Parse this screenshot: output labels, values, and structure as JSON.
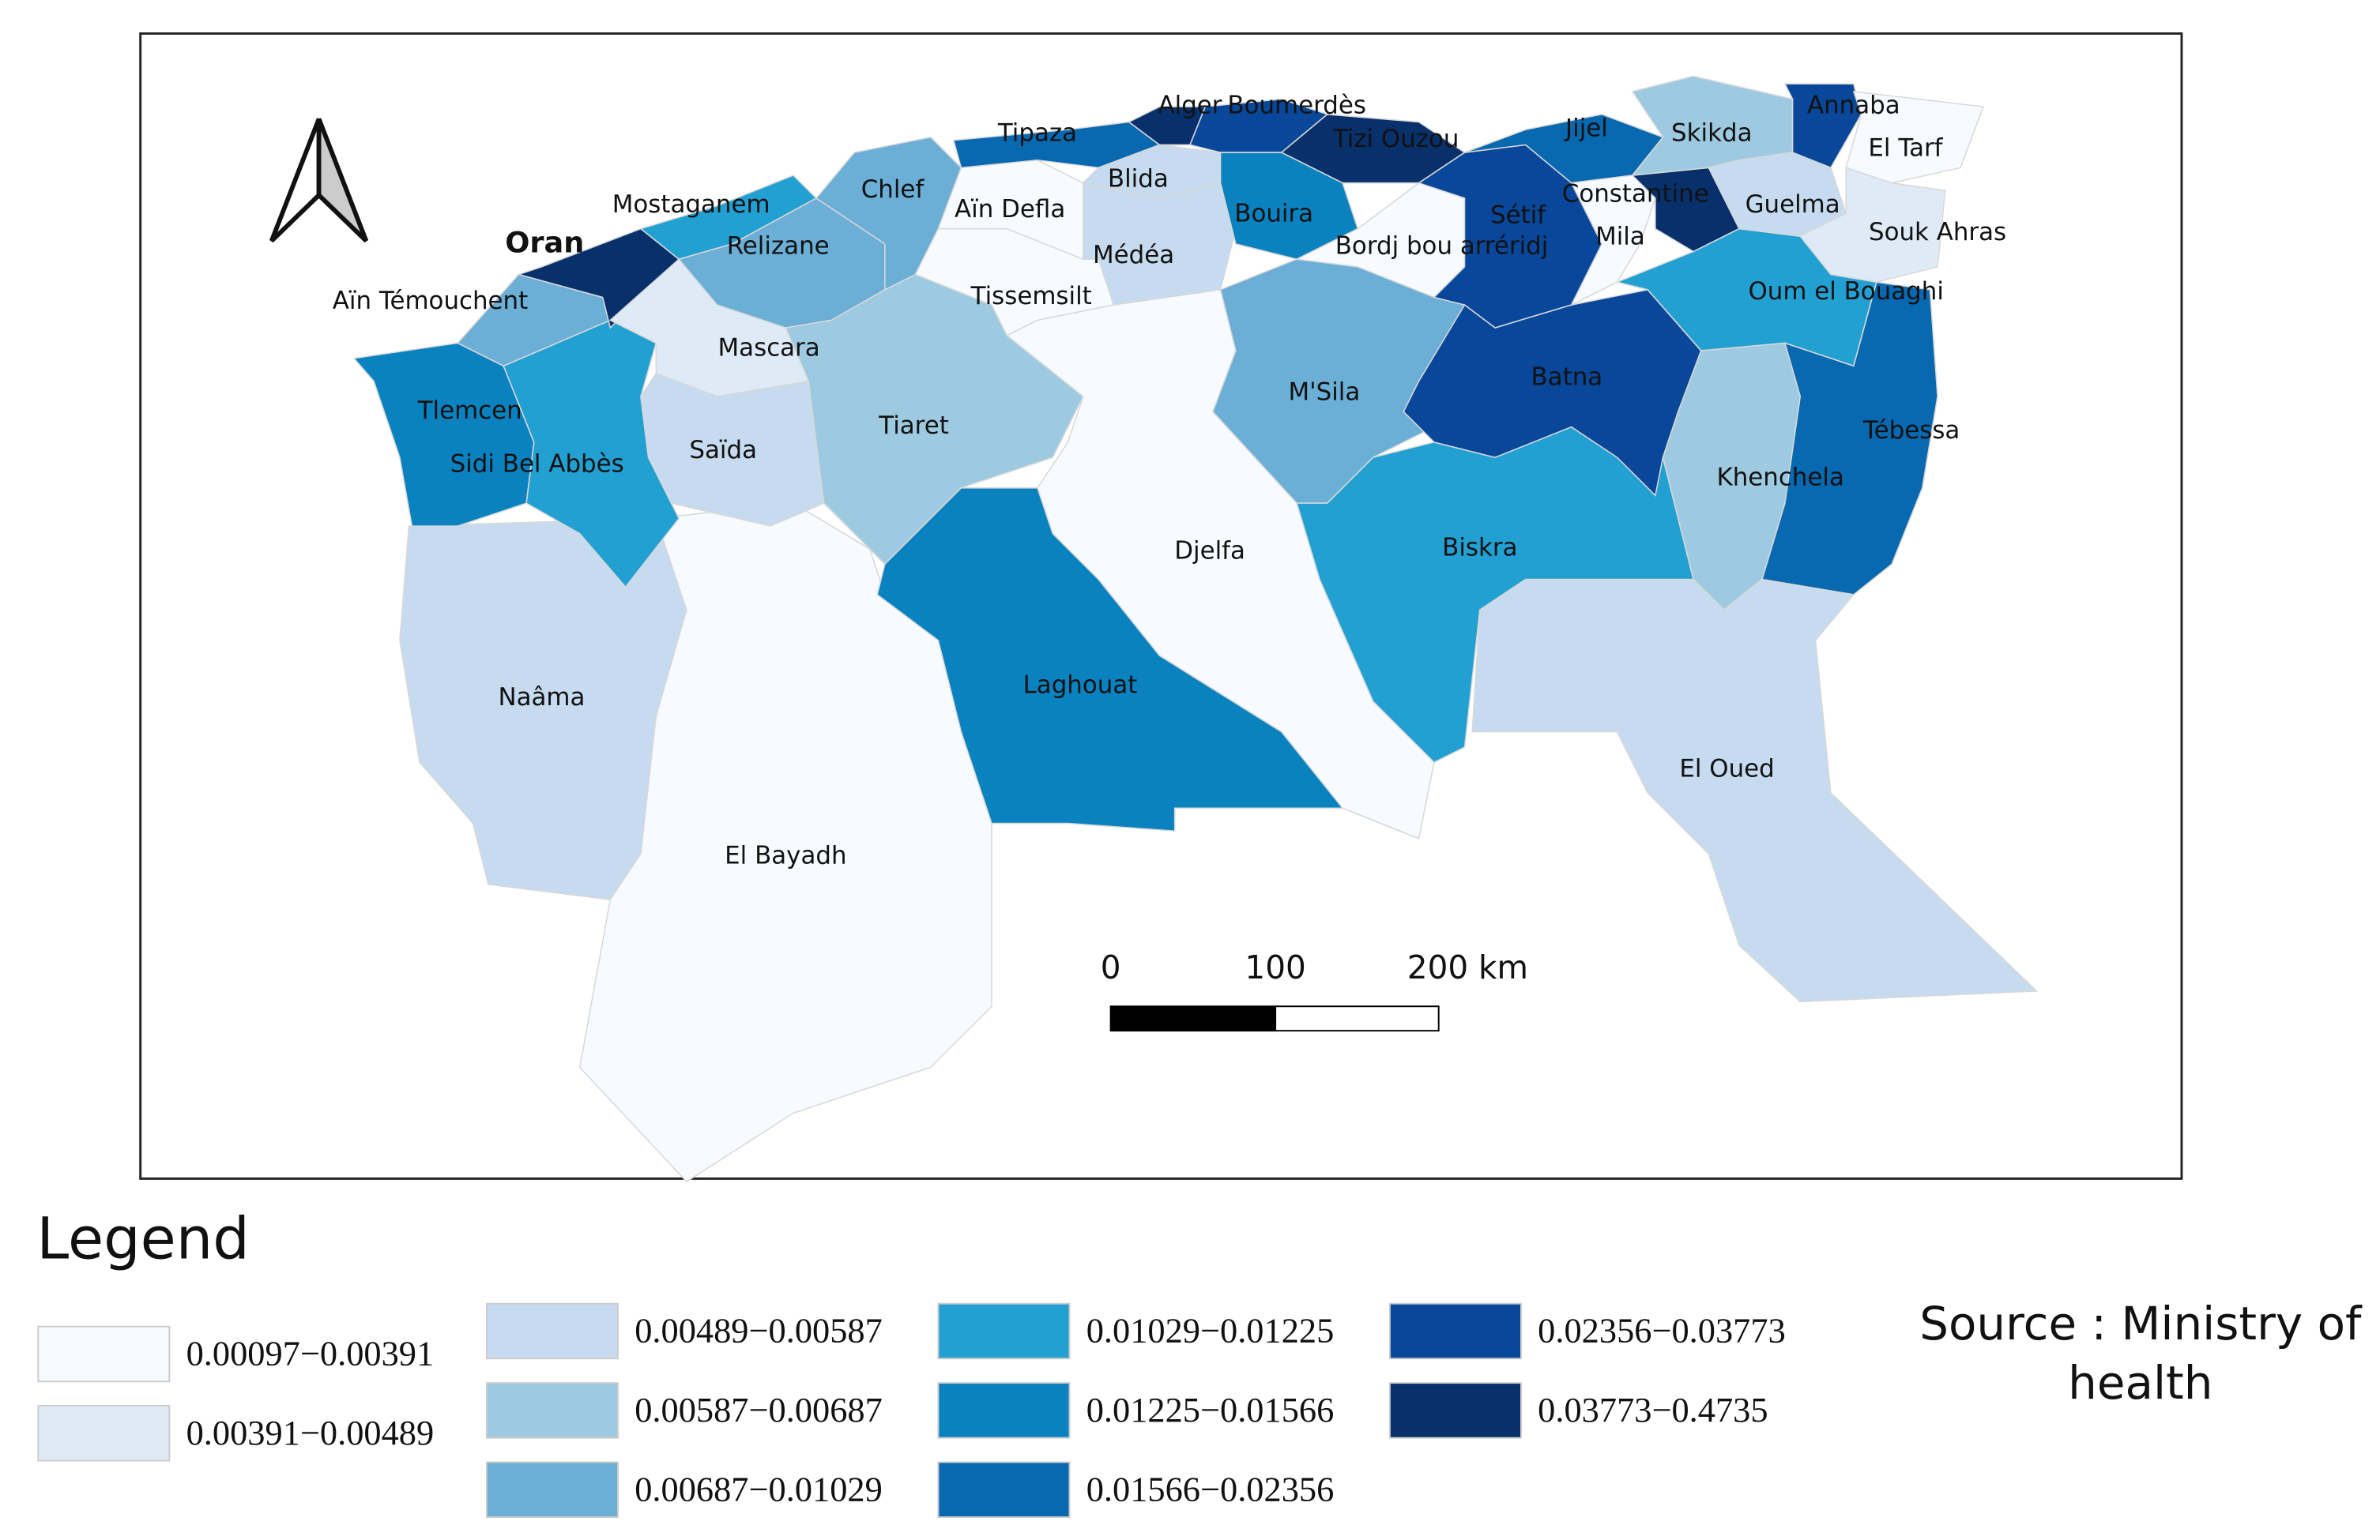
{
  "map": {
    "provinces": [
      {
        "name": "Naâma",
        "color": "#c6dbef"
      },
      {
        "name": "El Bayadh",
        "color": "#f7fbff"
      },
      {
        "name": "Tlemcen",
        "color": "#0a82c0"
      },
      {
        "name": "Sidi Bel Abbès",
        "color": "#23a0d2"
      },
      {
        "name": "Aïn Témouchent",
        "color": "#6baed6"
      },
      {
        "name": "Oran",
        "color": "#08306b"
      },
      {
        "name": "Mostaganem",
        "color": "#23a0d2"
      },
      {
        "name": "Relizane",
        "color": "#6baed6"
      },
      {
        "name": "Mascara",
        "color": "#deebf7"
      },
      {
        "name": "Saïda",
        "color": "#c6dbef"
      },
      {
        "name": "Tiaret",
        "color": "#9ecae1"
      },
      {
        "name": "Chlef",
        "color": "#6baed6"
      },
      {
        "name": "Tissemsilt",
        "color": "#f7fbff"
      },
      {
        "name": "Aïn Defla",
        "color": "#f7fbff"
      },
      {
        "name": "Tipaza",
        "color": "#0868b0"
      },
      {
        "name": "Alger",
        "color": "#08306b"
      },
      {
        "name": "Boumerdès",
        "color": "#08479a"
      },
      {
        "name": "Tizi Ouzou",
        "color": "#08306b"
      },
      {
        "name": "Blida",
        "color": "#c6dbef"
      },
      {
        "name": "Médéa",
        "color": "#c6dbef"
      },
      {
        "name": "Bouira",
        "color": "#0a82c0"
      },
      {
        "name": "Djelfa",
        "color": "#f7fbff"
      },
      {
        "name": "Laghouat",
        "color": "#0a82c0"
      },
      {
        "name": "M'Sila",
        "color": "#6baed6"
      },
      {
        "name": "Biskra",
        "color": "#23a0d2"
      },
      {
        "name": "Bordj bou arréridj",
        "color": "#f7fbff"
      },
      {
        "name": "Sétif",
        "color": "#08479a"
      },
      {
        "name": "Batna",
        "color": "#08479a"
      },
      {
        "name": "Jijel",
        "color": "#0868b0"
      },
      {
        "name": "Mila",
        "color": "#f7fbff"
      },
      {
        "name": "Constantine",
        "color": "#08306b"
      },
      {
        "name": "Skikda",
        "color": "#9ecae1"
      },
      {
        "name": "Annaba",
        "color": "#08479a"
      },
      {
        "name": "El Tarf",
        "color": "#f7fbff"
      },
      {
        "name": "Guelma",
        "color": "#c6dbef"
      },
      {
        "name": "Souk Ahras",
        "color": "#deebf7"
      },
      {
        "name": "Oum el Bouaghi",
        "color": "#23a0d2"
      },
      {
        "name": "Khenchela",
        "color": "#9ecae1"
      },
      {
        "name": "Tébessa",
        "color": "#0868b0"
      },
      {
        "name": "El Oued",
        "color": "#c6dbef"
      }
    ],
    "scale_bar": [
      "0",
      "100",
      "200 km"
    ],
    "legend": {
      "title": "Legend",
      "classes": [
        {
          "label": "0.00097−0.00391",
          "color": "#f7fbff"
        },
        {
          "label": "0.00391−0.00489",
          "color": "#deebf7"
        },
        {
          "label": "0.00489−0.00587",
          "color": "#c6dbef"
        },
        {
          "label": "0.00587−0.00687",
          "color": "#9ecae1"
        },
        {
          "label": "0.00687−0.01029",
          "color": "#6baed6"
        },
        {
          "label": "0.01029−0.01225",
          "color": "#23a0d2"
        },
        {
          "label": "0.01225−0.01566",
          "color": "#0a82c0"
        },
        {
          "label": "0.01566−0.02356",
          "color": "#0868b0"
        },
        {
          "label": "0.02356−0.03773",
          "color": "#08479a"
        },
        {
          "label": "0.03773−0.4735",
          "color": "#08306b"
        }
      ]
    },
    "source": [
      "Source : Ministry of",
      "health"
    ]
  }
}
